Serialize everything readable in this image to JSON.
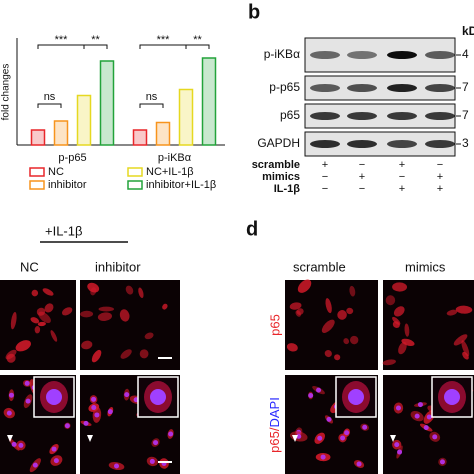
{
  "chart_data": {
    "type": "bar",
    "y_label": "fold changes",
    "categories": [
      "p-p65",
      "p-iKBα"
    ],
    "series": [
      {
        "name": "NC",
        "color": "#e8262a",
        "values": [
          1,
          1
        ]
      },
      {
        "name": "inhibitor",
        "color": "#f7941d",
        "values": [
          1.6,
          1.5
        ]
      },
      {
        "name": "NC+IL-1β",
        "color": "#e6d820",
        "values": [
          3.3,
          3.7
        ]
      },
      {
        "name": "inhibitor+IL-1β",
        "color": "#22a33a",
        "values": [
          5.6,
          5.8
        ]
      }
    ],
    "ylim": [
      0,
      7
    ],
    "significance": [
      [
        "***",
        "**",
        "ns"
      ],
      [
        "***",
        "**",
        "ns"
      ]
    ]
  },
  "western_blot": {
    "label": "b",
    "unit": "kD",
    "rows": [
      {
        "name": "p-iKBα",
        "weight": "4"
      },
      {
        "name": "p-p65",
        "weight": "7"
      },
      {
        "name": "p65",
        "weight": "7"
      },
      {
        "name": "GAPDH",
        "weight": "3"
      }
    ],
    "conditions": [
      {
        "name": "scramble",
        "signs": [
          "+",
          "−",
          "+",
          "−"
        ]
      },
      {
        "name": "mimics",
        "signs": [
          "−",
          "+",
          "−",
          "+"
        ]
      },
      {
        "name": "IL-1β",
        "signs": [
          "−",
          "−",
          "+",
          "+"
        ]
      }
    ]
  },
  "panel_c": {
    "treatment": "+IL-1β",
    "columns": [
      "NC",
      "inhibitor"
    ]
  },
  "panel_d": {
    "label": "d",
    "columns": [
      "scramble",
      "mimics"
    ],
    "row_labels": [
      [
        "p65"
      ],
      [
        "p65/",
        "DAPI"
      ]
    ]
  }
}
